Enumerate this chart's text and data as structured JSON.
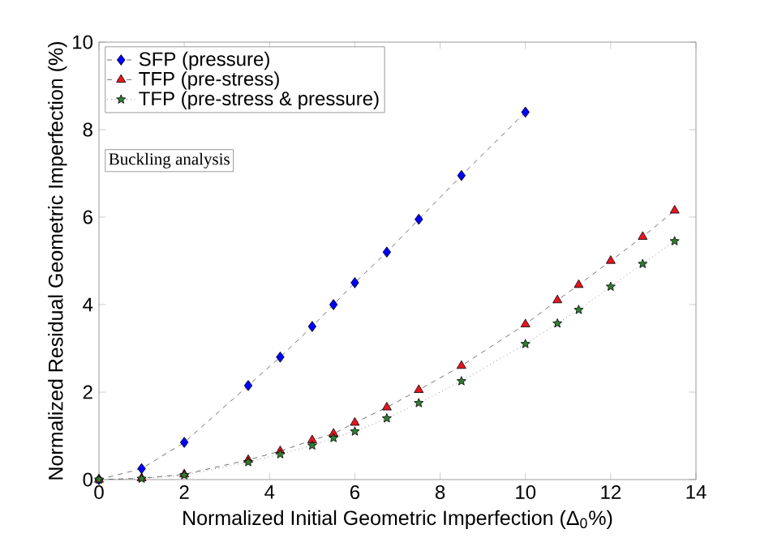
{
  "chart_data": {
    "type": "line",
    "xlabel": "Normalized Initial Geometric Imperfection (Δ$_{0}$%)",
    "ylabel": "Normalized Residual Geometric Imperfection (%)",
    "annotations": [
      "Buckling analysis"
    ],
    "series": [
      {
        "name": "SFP (pressure)",
        "color": "#0000ff",
        "marker": "diamond",
        "line_style": "dashed",
        "x": [
          0,
          1,
          2,
          3.5,
          4.25,
          5,
          5.5,
          6,
          6.75,
          7.5,
          8.5,
          10
        ],
        "values": [
          0,
          0.25,
          0.85,
          2.15,
          2.8,
          3.5,
          4.0,
          4.5,
          5.2,
          5.95,
          6.95,
          8.4
        ]
      },
      {
        "name": "TFP (pre-stress)",
        "color": "#e8141e",
        "marker": "triangle",
        "line_style": "dashed",
        "x": [
          0,
          1,
          2,
          3.5,
          4.25,
          5,
          5.5,
          6,
          6.75,
          7.5,
          8.5,
          10,
          10.75,
          11.25,
          12,
          12.75,
          13.5
        ],
        "values": [
          0,
          0.03,
          0.12,
          0.45,
          0.65,
          0.9,
          1.05,
          1.3,
          1.65,
          2.05,
          2.6,
          3.55,
          4.1,
          4.45,
          5.0,
          5.55,
          6.15
        ]
      },
      {
        "name": "TFP (pre-stress & pressure)",
        "color": "#2e7d32",
        "marker": "star",
        "line_style": "dotted",
        "x": [
          0,
          1,
          2,
          3.5,
          4.25,
          5,
          5.5,
          6,
          6.75,
          7.5,
          8.5,
          10,
          10.75,
          11.25,
          12,
          12.75,
          13.5
        ],
        "values": [
          0,
          0.02,
          0.1,
          0.4,
          0.58,
          0.78,
          0.95,
          1.1,
          1.4,
          1.75,
          2.25,
          3.1,
          3.57,
          3.88,
          4.41,
          4.93,
          5.45
        ]
      }
    ],
    "xlim": [
      0,
      14
    ],
    "ylim": [
      0,
      10
    ],
    "xticks": [
      0,
      2,
      4,
      6,
      8,
      10,
      12,
      14
    ],
    "yticks": [
      0,
      2,
      4,
      6,
      8,
      10
    ],
    "legend": "top left",
    "grid": false
  }
}
